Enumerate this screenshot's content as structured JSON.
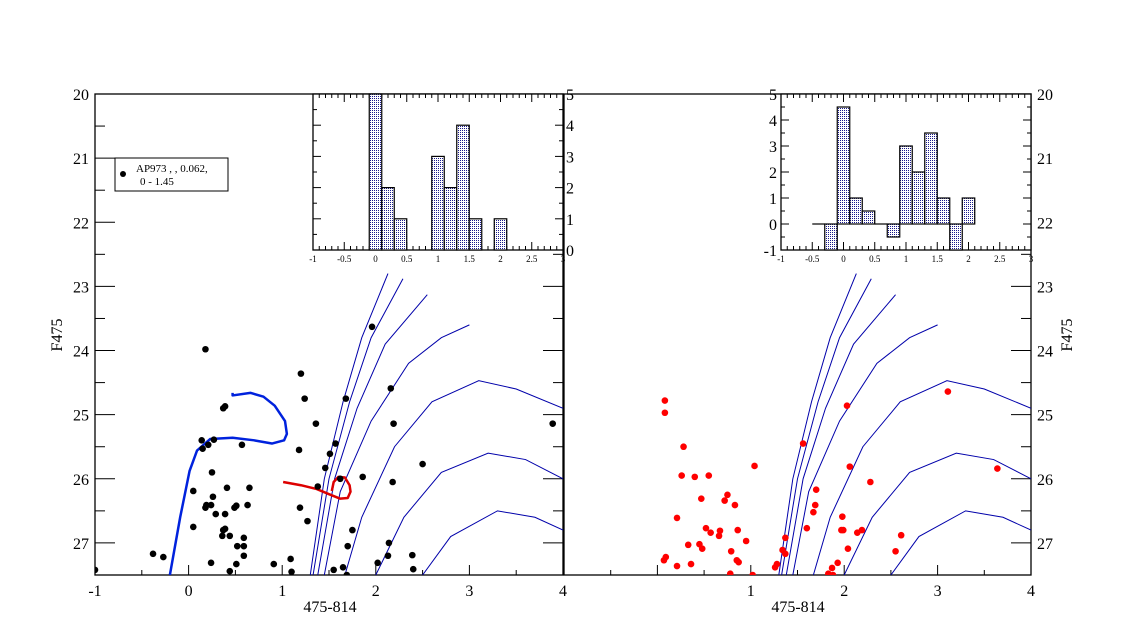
{
  "chart_data": [
    {
      "type": "scatter",
      "panel": "left",
      "xlabel": "475-814",
      "ylabel": "F475",
      "xlim": [
        -1,
        4
      ],
      "ylim": [
        27.5,
        20
      ],
      "x_ticks": [
        "-1",
        "0",
        "1",
        "2",
        "3",
        "4"
      ],
      "y_ticks": [
        "20",
        "21",
        "22",
        "23",
        "24",
        "25",
        "26",
        "27"
      ],
      "legend": {
        "line1": "AP973  ,    , 0.062,",
        "line2": "0 - 1.45",
        "placement": "top-left"
      },
      "marker_color": "#000000",
      "points": [
        [
          0.18,
          23.98
        ],
        [
          0.37,
          24.9
        ],
        [
          0.39,
          24.87
        ],
        [
          0.14,
          25.4
        ],
        [
          0.15,
          25.53
        ],
        [
          0.21,
          25.47
        ],
        [
          0.27,
          25.39
        ],
        [
          0.57,
          25.47
        ],
        [
          0.25,
          25.9
        ],
        [
          0.05,
          26.19
        ],
        [
          0.41,
          26.14
        ],
        [
          0.65,
          26.14
        ],
        [
          0.26,
          26.28
        ],
        [
          0.19,
          26.41
        ],
        [
          0.18,
          26.45
        ],
        [
          0.24,
          26.41
        ],
        [
          0.63,
          26.41
        ],
        [
          0.49,
          26.45
        ],
        [
          0.51,
          26.42
        ],
        [
          0.29,
          26.55
        ],
        [
          0.39,
          26.55
        ],
        [
          0.05,
          26.75
        ],
        [
          0.37,
          26.8
        ],
        [
          0.39,
          26.78
        ],
        [
          0.36,
          26.89
        ],
        [
          0.44,
          26.89
        ],
        [
          0.59,
          26.92
        ],
        [
          0.52,
          27.05
        ],
        [
          0.59,
          27.05
        ],
        [
          -0.38,
          27.17
        ],
        [
          -0.27,
          27.22
        ],
        [
          0.59,
          27.2
        ],
        [
          0.24,
          27.31
        ],
        [
          0.51,
          27.33
        ],
        [
          0.91,
          27.33
        ],
        [
          0.44,
          27.44
        ],
        [
          -1.0,
          27.42
        ],
        [
          1.96,
          23.63
        ],
        [
          1.2,
          24.36
        ],
        [
          2.16,
          24.59
        ],
        [
          1.24,
          24.75
        ],
        [
          1.68,
          24.75
        ],
        [
          1.36,
          25.14
        ],
        [
          2.19,
          25.14
        ],
        [
          3.89,
          25.14
        ],
        [
          1.18,
          25.55
        ],
        [
          1.57,
          25.45
        ],
        [
          1.51,
          25.61
        ],
        [
          1.46,
          25.83
        ],
        [
          2.5,
          25.77
        ],
        [
          1.86,
          25.97
        ],
        [
          1.62,
          26.0
        ],
        [
          2.18,
          26.05
        ],
        [
          1.38,
          26.12
        ],
        [
          1.19,
          26.45
        ],
        [
          1.27,
          26.66
        ],
        [
          1.75,
          26.8
        ],
        [
          1.7,
          27.05
        ],
        [
          2.14,
          27.0
        ],
        [
          2.13,
          27.2
        ],
        [
          2.39,
          27.19
        ],
        [
          1.09,
          27.25
        ],
        [
          1.1,
          27.45
        ],
        [
          1.55,
          27.42
        ],
        [
          1.65,
          27.38
        ],
        [
          1.69,
          27.5
        ],
        [
          2.02,
          27.31
        ],
        [
          2.4,
          27.41
        ]
      ],
      "track_blue": [
        [
          -0.2,
          27.5
        ],
        [
          -0.09,
          26.6
        ],
        [
          0.01,
          25.88
        ],
        [
          0.09,
          25.56
        ],
        [
          0.23,
          25.38
        ],
        [
          0.47,
          25.36
        ],
        [
          0.7,
          25.4
        ],
        [
          0.89,
          25.45
        ],
        [
          1.02,
          25.4
        ],
        [
          1.05,
          25.3
        ],
        [
          1.03,
          25.1
        ],
        [
          0.92,
          24.86
        ],
        [
          0.8,
          24.72
        ],
        [
          0.66,
          24.66
        ],
        [
          0.47,
          24.7
        ],
        [
          0.47,
          24.66
        ]
      ],
      "track_red": [
        [
          1.01,
          26.05
        ],
        [
          1.2,
          26.1
        ],
        [
          1.37,
          26.16
        ],
        [
          1.5,
          26.24
        ],
        [
          1.62,
          26.31
        ],
        [
          1.7,
          26.3
        ],
        [
          1.73,
          26.2
        ],
        [
          1.72,
          26.1
        ],
        [
          1.67,
          25.98
        ],
        [
          1.6,
          25.97
        ],
        [
          1.55,
          26.05
        ],
        [
          1.53,
          26.19
        ]
      ],
      "inset": {
        "type": "bar",
        "xlim": [
          -1,
          3
        ],
        "ylim": [
          0,
          5
        ],
        "x_ticks": [
          "-1",
          "-0.5",
          "0",
          "0.5",
          "1",
          "1.5",
          "2",
          "2.5",
          "3"
        ],
        "y_ticks": [
          "0",
          "1",
          "2",
          "3",
          "4",
          "5"
        ],
        "bin_width": 0.2,
        "bins": [
          [
            0,
            5
          ],
          [
            0.2,
            2
          ],
          [
            0.4,
            1
          ],
          [
            1.0,
            3
          ],
          [
            1.2,
            2
          ],
          [
            1.4,
            4
          ],
          [
            1.6,
            1
          ],
          [
            2.0,
            1
          ]
        ]
      }
    },
    {
      "type": "scatter",
      "panel": "right",
      "xlabel": "475-814",
      "ylabel": "F475",
      "xlim": [
        -1,
        4
      ],
      "ylim": [
        27.5,
        20
      ],
      "x_ticks": [
        "1",
        "2",
        "3",
        "4"
      ],
      "y_ticks": [
        "20",
        "21",
        "22",
        "23",
        "24",
        "25",
        "26",
        "27"
      ],
      "marker_color": "#ff0000",
      "points": [
        [
          0.08,
          24.78
        ],
        [
          0.08,
          24.97
        ],
        [
          0.28,
          25.5
        ],
        [
          1.04,
          25.8
        ],
        [
          0.26,
          25.95
        ],
        [
          0.4,
          25.97
        ],
        [
          0.55,
          25.95
        ],
        [
          0.47,
          26.31
        ],
        [
          0.75,
          26.25
        ],
        [
          0.72,
          26.34
        ],
        [
          0.83,
          26.41
        ],
        [
          0.21,
          26.61
        ],
        [
          0.52,
          26.77
        ],
        [
          0.57,
          26.84
        ],
        [
          0.67,
          26.81
        ],
        [
          0.66,
          26.89
        ],
        [
          0.86,
          26.8
        ],
        [
          0.95,
          26.97
        ],
        [
          0.33,
          27.03
        ],
        [
          0.45,
          27.02
        ],
        [
          0.48,
          27.09
        ],
        [
          0.79,
          27.13
        ],
        [
          0.09,
          27.22
        ],
        [
          0.07,
          27.27
        ],
        [
          0.85,
          27.27
        ],
        [
          0.87,
          27.3
        ],
        [
          0.21,
          27.36
        ],
        [
          0.36,
          27.33
        ],
        [
          0.78,
          27.48
        ],
        [
          1.02,
          27.5
        ],
        [
          1.26,
          27.38
        ],
        [
          2.03,
          24.86
        ],
        [
          3.11,
          24.64
        ],
        [
          1.56,
          25.45
        ],
        [
          3.64,
          25.84
        ],
        [
          2.06,
          25.81
        ],
        [
          2.28,
          26.05
        ],
        [
          1.7,
          26.17
        ],
        [
          1.69,
          26.41
        ],
        [
          1.67,
          26.52
        ],
        [
          1.98,
          26.59
        ],
        [
          1.6,
          26.77
        ],
        [
          1.97,
          26.8
        ],
        [
          1.99,
          26.8
        ],
        [
          2.14,
          26.84
        ],
        [
          2.19,
          26.8
        ],
        [
          2.61,
          26.88
        ],
        [
          2.04,
          27.09
        ],
        [
          2.55,
          27.13
        ],
        [
          1.37,
          26.92
        ],
        [
          1.34,
          27.11
        ],
        [
          1.37,
          27.17
        ],
        [
          1.28,
          27.33
        ],
        [
          1.93,
          27.31
        ],
        [
          1.87,
          27.39
        ],
        [
          1.83,
          27.48
        ],
        [
          1.88,
          27.5
        ]
      ],
      "inset": {
        "type": "bar",
        "xlim": [
          -1,
          3
        ],
        "ylim": [
          -1,
          5
        ],
        "x_ticks": [
          "-1",
          "-0.5",
          "0",
          "0.5",
          "1",
          "1.5",
          "2",
          "2.5",
          "3"
        ],
        "y_ticks": [
          "-1",
          "0",
          "1",
          "2",
          "3",
          "4",
          "5"
        ],
        "bin_width": 0.2,
        "bins": [
          [
            -0.4,
            0
          ],
          [
            -0.2,
            -1
          ],
          [
            0,
            4.5
          ],
          [
            0.2,
            1
          ],
          [
            0.4,
            0.5
          ],
          [
            0.6,
            0
          ],
          [
            0.8,
            -0.5
          ],
          [
            1.0,
            3
          ],
          [
            1.2,
            2
          ],
          [
            1.4,
            3.5
          ],
          [
            1.6,
            1
          ],
          [
            1.8,
            -1
          ],
          [
            2.0,
            1
          ]
        ]
      }
    }
  ],
  "isochrones": [
    [
      [
        1.3,
        27.5
      ],
      [
        1.45,
        26.0
      ],
      [
        1.65,
        24.8
      ],
      [
        1.85,
        23.8
      ],
      [
        2.13,
        22.8
      ]
    ],
    [
      [
        1.33,
        27.5
      ],
      [
        1.5,
        26.0
      ],
      [
        1.72,
        24.8
      ],
      [
        1.95,
        23.8
      ],
      [
        2.29,
        22.88
      ]
    ],
    [
      [
        1.38,
        27.5
      ],
      [
        1.56,
        26.0
      ],
      [
        1.8,
        24.9
      ],
      [
        2.1,
        23.9
      ],
      [
        2.55,
        23.13
      ]
    ],
    [
      [
        1.45,
        27.5
      ],
      [
        1.62,
        26.2
      ],
      [
        1.95,
        25.1
      ],
      [
        2.35,
        24.2
      ],
      [
        2.7,
        23.8
      ],
      [
        3.0,
        23.6
      ]
    ],
    [
      [
        1.67,
        27.5
      ],
      [
        1.85,
        26.6
      ],
      [
        2.2,
        25.5
      ],
      [
        2.6,
        24.8
      ],
      [
        3.1,
        24.47
      ],
      [
        3.5,
        24.6
      ],
      [
        4.0,
        24.9
      ]
    ],
    [
      [
        2.0,
        27.5
      ],
      [
        2.3,
        26.6
      ],
      [
        2.7,
        25.9
      ],
      [
        3.2,
        25.6
      ],
      [
        3.6,
        25.7
      ],
      [
        4.0,
        26.0
      ]
    ],
    [
      [
        2.5,
        27.5
      ],
      [
        2.8,
        26.9
      ],
      [
        3.3,
        26.5
      ],
      [
        3.7,
        26.6
      ],
      [
        4.0,
        26.8
      ]
    ]
  ],
  "colors": {
    "isochrone": "#0000aa",
    "track_blue": "#0022dd",
    "track_red": "#dd0000",
    "hist_fill": "#1a1a8c"
  }
}
